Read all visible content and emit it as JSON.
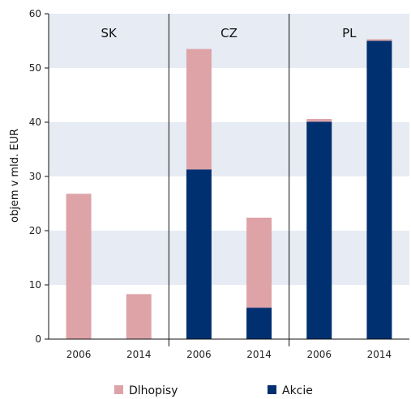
{
  "chart_data": {
    "type": "bar",
    "stacked": true,
    "ylabel": "objem v mld. EUR",
    "ylim": [
      0,
      60
    ],
    "yticks": [
      0,
      10,
      20,
      30,
      40,
      50,
      60
    ],
    "grid": "alternating horizontal bands",
    "legend_position": "bottom",
    "panels": [
      {
        "label": "SK",
        "categories": [
          "2006",
          "2014"
        ]
      },
      {
        "label": "CZ",
        "categories": [
          "2006",
          "2014"
        ]
      },
      {
        "label": "PL",
        "categories": [
          "2006",
          "2014"
        ]
      }
    ],
    "categories": [
      "2006",
      "2014",
      "2006",
      "2014",
      "2006",
      "2014"
    ],
    "series": [
      {
        "name": "Akcie",
        "color": "#003070",
        "values": [
          0,
          0,
          31.3,
          5.8,
          40.1,
          55.0
        ]
      },
      {
        "name": "Dlhopisy",
        "color": "#dea3a7",
        "values": [
          26.8,
          8.3,
          22.2,
          16.6,
          0.5,
          0.3
        ]
      }
    ]
  }
}
